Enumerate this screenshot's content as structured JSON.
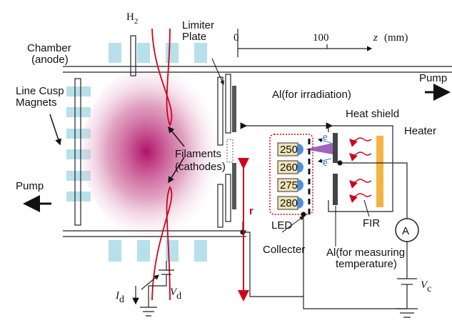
{
  "labels": {
    "h2": {
      "main": "H",
      "sub": "2"
    },
    "chamber": [
      "Chamber",
      "(anode)"
    ],
    "limiter": [
      "Limiter",
      "Plate"
    ],
    "scale": {
      "zero": "0",
      "hundred": "100",
      "axis": "z",
      "unit": "(mm)"
    },
    "pump_right": "Pump",
    "pump_left": "Pump",
    "al_irradiation": "Al(for irradiation)",
    "heat_shield": "Heat shield",
    "heater": "Heater",
    "magnets": [
      "Line Cusp",
      "Magnets"
    ],
    "filaments": [
      "Filaments",
      "(cathodes)"
    ],
    "electrons": [
      "e",
      "e"
    ],
    "wavelengths": [
      "250",
      "260",
      "275",
      "280"
    ],
    "r": "r",
    "led": "LED",
    "collector": "Collecter",
    "fir": "FIR",
    "ammeter": "A",
    "al_measuring": [
      "Al(for measuring",
      "temperature)"
    ],
    "vc": {
      "main": "V",
      "sub": "c"
    },
    "id": {
      "main": "I",
      "sub": "d"
    },
    "vd": {
      "main": "V",
      "sub": "d"
    }
  }
}
